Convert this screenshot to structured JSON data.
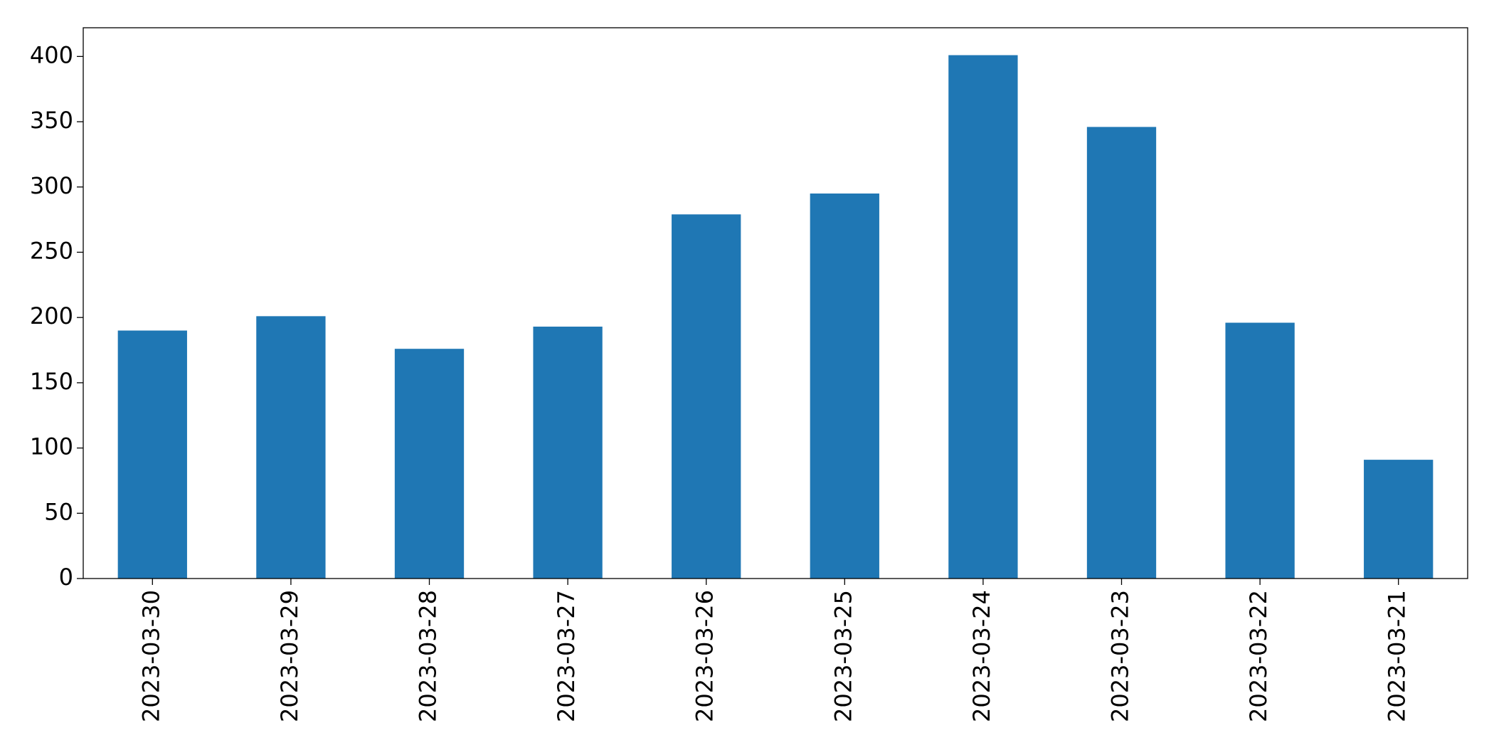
{
  "chart_data": {
    "type": "bar",
    "categories": [
      "2023-03-30",
      "2023-03-29",
      "2023-03-28",
      "2023-03-27",
      "2023-03-26",
      "2023-03-25",
      "2023-03-24",
      "2023-03-23",
      "2023-03-22",
      "2023-03-21"
    ],
    "values": [
      190,
      201,
      176,
      193,
      279,
      295,
      401,
      346,
      196,
      91
    ],
    "color": "#1f77b4",
    "ylim": [
      0,
      422
    ],
    "yticks": [
      0,
      50,
      100,
      150,
      200,
      250,
      300,
      350,
      400
    ],
    "grid": false
  }
}
